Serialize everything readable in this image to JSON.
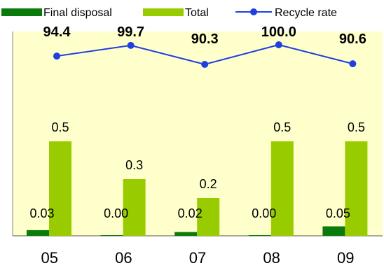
{
  "chart_data": {
    "type": "bar",
    "categories": [
      "05",
      "06",
      "07",
      "08",
      "09"
    ],
    "series": [
      {
        "name": "Final disposal",
        "kind": "bar",
        "color": "#0a7a0a",
        "values": [
          0.03,
          0.0,
          0.02,
          0.0,
          0.05
        ],
        "labels": [
          "0.03",
          "0.00",
          "0.02",
          "0.00",
          "0.05"
        ]
      },
      {
        "name": "Total",
        "kind": "bar",
        "color": "#99cc00",
        "values": [
          0.5,
          0.3,
          0.2,
          0.5,
          0.5
        ],
        "labels": [
          "0.5",
          "0.3",
          "0.2",
          "0.5",
          "0.5"
        ]
      },
      {
        "name": "Recycle rate",
        "kind": "line",
        "color": "#1f3fe0",
        "values": [
          94.4,
          99.7,
          90.3,
          100.0,
          90.6
        ],
        "labels": [
          "94.4",
          "99.7",
          "90.3",
          "100.0",
          "90.6"
        ]
      }
    ],
    "legend_position": "top",
    "plot_background": "#ffffcc",
    "grid": false
  }
}
